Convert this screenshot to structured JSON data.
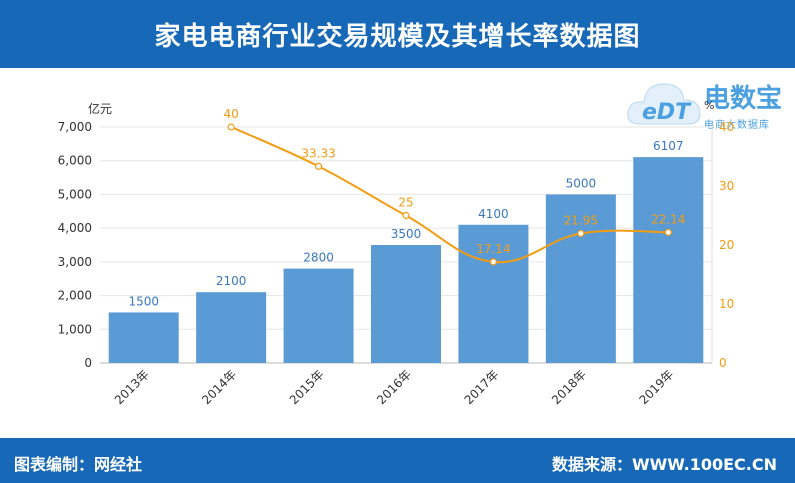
{
  "header": {
    "title": "家电电商行业交易规模及其增长率数据图"
  },
  "footer": {
    "left": "图表编制：网经社",
    "right": "数据来源：WWW.100EC.CN"
  },
  "logo": {
    "main": "电数宝",
    "sub": "电商大数据库",
    "mark": "eDT"
  },
  "colors": {
    "bar": "#5b9bd5",
    "line": "#f39c12",
    "bar_label": "#3a78bf",
    "line_label": "#f39c12",
    "header_bg": "#1769b8"
  },
  "chart_data": {
    "type": "bar",
    "categories": [
      "2013年",
      "2014年",
      "2015年",
      "2016年",
      "2017年",
      "2018年",
      "2019年"
    ],
    "series": [
      {
        "type": "bar",
        "values": [
          1500,
          2100,
          2800,
          3500,
          4100,
          5000,
          6107
        ],
        "axis": "left"
      },
      {
        "type": "line",
        "values": [
          null,
          40,
          33.33,
          25,
          17.14,
          21.95,
          22.14
        ],
        "axis": "right"
      }
    ],
    "bar_labels": [
      "1500",
      "2100",
      "2800",
      "3500",
      "4100",
      "5000",
      "6107"
    ],
    "line_labels": [
      "",
      "40",
      "33.33",
      "25",
      "17.14",
      "21.95",
      "22.14"
    ],
    "ylabel": "亿元",
    "y2label": "%",
    "ylim": [
      0,
      7000
    ],
    "y2lim": [
      0,
      40
    ],
    "yticks": [
      "0",
      "1,000",
      "2,000",
      "3,000",
      "4,000",
      "5,000",
      "6,000",
      "7,000"
    ],
    "y2ticks": [
      "0",
      "10",
      "20",
      "30",
      "40"
    ],
    "grid": true
  }
}
